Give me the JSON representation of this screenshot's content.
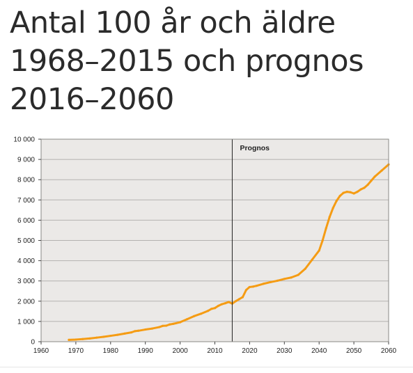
{
  "title_lines": [
    "Antal 100 år och äldre",
    "1968–2015 och prognos",
    "2016–2060"
  ],
  "chart_data": {
    "type": "line",
    "title": "Antal 100 år och äldre 1968–2015 och prognos 2016–2060",
    "xlabel": "",
    "ylabel": "",
    "xlim": [
      1960,
      2060
    ],
    "ylim": [
      0,
      10000
    ],
    "x_ticks": [
      1960,
      1970,
      1980,
      1990,
      2000,
      2010,
      2020,
      2030,
      2040,
      2050,
      2060
    ],
    "y_ticks": [
      0,
      1000,
      2000,
      3000,
      4000,
      5000,
      6000,
      7000,
      8000,
      9000,
      10000
    ],
    "y_tick_labels": [
      "0",
      "1 000",
      "2 000",
      "3 000",
      "4 000",
      "5 000",
      "6 000",
      "7 000",
      "8 000",
      "9 000",
      "10 000"
    ],
    "x_tick_labels": [
      "1960",
      "1970",
      "1980",
      "1990",
      "2000",
      "2010",
      "2020",
      "2030",
      "2040",
      "2050",
      "2060"
    ],
    "grid": "horizontal",
    "background": "#ebe9e7",
    "series": [
      {
        "color": "#f59c14",
        "x": [
          1968,
          1970,
          1972,
          1974,
          1976,
          1978,
          1980,
          1982,
          1984,
          1986,
          1987,
          1988,
          1990,
          1992,
          1994,
          1995,
          1996,
          1997,
          1998,
          2000,
          2002,
          2004,
          2006,
          2008,
          2009,
          2010,
          2011,
          2012,
          2013,
          2014,
          2015,
          2016,
          2017,
          2018,
          2019,
          2020,
          2021,
          2022,
          2024,
          2026,
          2028,
          2030,
          2032,
          2034,
          2036,
          2038,
          2040,
          2041,
          2042,
          2043,
          2044,
          2045,
          2046,
          2047,
          2048,
          2049,
          2050,
          2051,
          2052,
          2053,
          2054,
          2055,
          2056,
          2058,
          2060
        ],
        "y": [
          90,
          105,
          130,
          160,
          200,
          240,
          290,
          340,
          400,
          460,
          520,
          540,
          600,
          650,
          720,
          780,
          790,
          850,
          880,
          960,
          1110,
          1260,
          1380,
          1520,
          1620,
          1660,
          1770,
          1850,
          1900,
          1960,
          1880,
          2000,
          2100,
          2200,
          2550,
          2700,
          2720,
          2760,
          2860,
          2940,
          3010,
          3100,
          3170,
          3300,
          3600,
          4050,
          4500,
          5000,
          5600,
          6150,
          6600,
          6950,
          7200,
          7350,
          7400,
          7380,
          7320,
          7400,
          7520,
          7600,
          7750,
          7950,
          8150,
          8450,
          8750
        ]
      }
    ],
    "annotations": [
      {
        "type": "vline",
        "x": 2015,
        "label": "Prognos"
      }
    ]
  }
}
